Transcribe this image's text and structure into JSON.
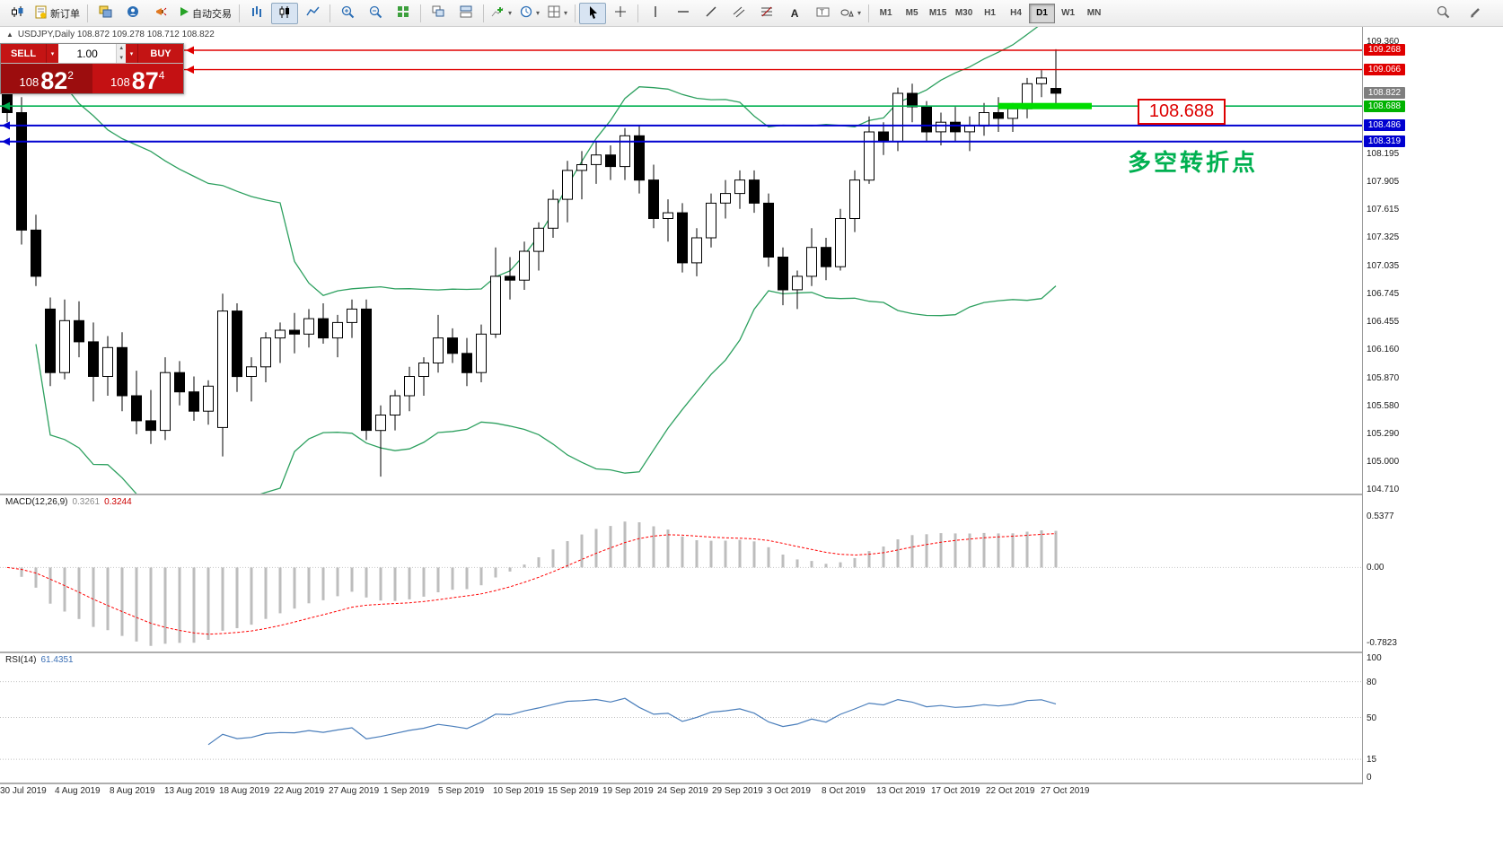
{
  "toolbar": {
    "new_order_label": "新订单",
    "auto_trading_label": "自动交易",
    "timeframes": [
      "M1",
      "M5",
      "M15",
      "M30",
      "H1",
      "H4",
      "D1",
      "W1",
      "MN"
    ],
    "active_timeframe": "D1"
  },
  "trade_panel": {
    "sell_label": "SELL",
    "buy_label": "BUY",
    "volume": "1.00",
    "sell_price": {
      "prefix": "108",
      "big": "82",
      "sup": "2"
    },
    "buy_price": {
      "prefix": "108",
      "big": "87",
      "sup": "4"
    }
  },
  "chart_header": {
    "text": "USDJPY,Daily  108.872 109.278 108.712 108.822"
  },
  "annotations": {
    "price_callout": "108.688",
    "turning_point": "多空转折点"
  },
  "chart_data": {
    "type": "candlestick",
    "symbol": "USDJPY",
    "timeframe": "Daily",
    "title_ohlc": {
      "open": "108.872",
      "high": "109.278",
      "low": "108.712",
      "close": "108.822"
    },
    "price_axis": {
      "ticks": [
        "109.360",
        "108.195",
        "107.905",
        "107.615",
        "107.325",
        "107.035",
        "106.745",
        "106.455",
        "106.160",
        "105.870",
        "105.580",
        "105.290",
        "105.000",
        "104.710"
      ]
    },
    "price_tags": [
      {
        "label": "109.268",
        "bg": "#e00000",
        "fg": "#ffffff"
      },
      {
        "label": "109.066",
        "bg": "#e00000",
        "fg": "#ffffff"
      },
      {
        "label": "108.822",
        "bg": "#7f7f7f",
        "fg": "#ffffff"
      },
      {
        "label": "108.688",
        "bg": "#00b200",
        "fg": "#ffffff"
      },
      {
        "label": "108.486",
        "bg": "#0000d0",
        "fg": "#ffffff"
      },
      {
        "label": "108.319",
        "bg": "#0000d0",
        "fg": "#ffffff"
      }
    ],
    "hlines": [
      {
        "price": 109.268,
        "color": "#e00000",
        "width": 1.4
      },
      {
        "price": 109.066,
        "color": "#e00000",
        "width": 1.4
      },
      {
        "price": 108.688,
        "color": "#00b050",
        "width": 1.6
      },
      {
        "price": 108.486,
        "color": "#0000d0",
        "width": 2
      },
      {
        "price": 108.319,
        "color": "#0000d0",
        "width": 2
      }
    ],
    "highlight_segment": {
      "price": 108.688,
      "from_bar": 69,
      "to_bar": 75.5,
      "color": "#00dd00",
      "thickness": 7
    },
    "dates": [
      "30 Jul 2019",
      "4 Aug 2019",
      "8 Aug 2019",
      "13 Aug 2019",
      "18 Aug 2019",
      "22 Aug 2019",
      "27 Aug 2019",
      "1 Sep 2019",
      "5 Sep 2019",
      "10 Sep 2019",
      "15 Sep 2019",
      "19 Sep 2019",
      "24 Sep 2019",
      "29 Sep 2019",
      "3 Oct 2019",
      "8 Oct 2019",
      "13 Oct 2019",
      "17 Oct 2019",
      "22 Oct 2019",
      "27 Oct 2019"
    ],
    "candles": [
      [
        108.95,
        109.02,
        108.52,
        108.62
      ],
      [
        108.62,
        108.78,
        107.25,
        107.4
      ],
      [
        107.4,
        107.56,
        106.82,
        106.92
      ],
      [
        106.58,
        106.7,
        105.78,
        105.92
      ],
      [
        105.92,
        106.68,
        105.85,
        106.46
      ],
      [
        106.46,
        106.66,
        106.08,
        106.24
      ],
      [
        106.24,
        106.44,
        105.62,
        105.88
      ],
      [
        105.88,
        106.3,
        105.68,
        106.18
      ],
      [
        106.18,
        106.34,
        105.52,
        105.68
      ],
      [
        105.68,
        105.94,
        105.28,
        105.42
      ],
      [
        105.42,
        105.74,
        105.18,
        105.32
      ],
      [
        105.32,
        106.08,
        105.22,
        105.92
      ],
      [
        105.92,
        106.04,
        105.58,
        105.72
      ],
      [
        105.72,
        105.88,
        105.42,
        105.52
      ],
      [
        105.52,
        105.84,
        105.38,
        105.78
      ],
      [
        105.35,
        106.74,
        105.05,
        106.56
      ],
      [
        106.56,
        106.64,
        105.72,
        105.88
      ],
      [
        105.88,
        106.08,
        105.62,
        105.98
      ],
      [
        105.98,
        106.34,
        105.82,
        106.28
      ],
      [
        106.28,
        106.44,
        106.02,
        106.36
      ],
      [
        106.36,
        106.54,
        106.12,
        106.32
      ],
      [
        106.32,
        106.58,
        106.18,
        106.48
      ],
      [
        106.48,
        106.64,
        106.22,
        106.28
      ],
      [
        106.28,
        106.52,
        106.08,
        106.44
      ],
      [
        106.44,
        106.68,
        106.28,
        106.58
      ],
      [
        106.58,
        106.68,
        105.22,
        105.32
      ],
      [
        105.32,
        105.58,
        104.84,
        105.48
      ],
      [
        105.48,
        105.74,
        105.32,
        105.68
      ],
      [
        105.68,
        105.98,
        105.52,
        105.88
      ],
      [
        105.88,
        106.08,
        105.68,
        106.02
      ],
      [
        106.02,
        106.52,
        105.92,
        106.28
      ],
      [
        106.28,
        106.38,
        106.02,
        106.12
      ],
      [
        106.12,
        106.28,
        105.78,
        105.92
      ],
      [
        105.92,
        106.42,
        105.82,
        106.32
      ],
      [
        106.32,
        107.22,
        106.28,
        106.92
      ],
      [
        106.92,
        107.12,
        106.68,
        106.88
      ],
      [
        106.88,
        107.28,
        106.78,
        107.18
      ],
      [
        107.18,
        107.48,
        106.98,
        107.42
      ],
      [
        107.42,
        107.82,
        107.32,
        107.72
      ],
      [
        107.72,
        108.12,
        107.48,
        108.02
      ],
      [
        108.02,
        108.22,
        107.72,
        108.08
      ],
      [
        108.08,
        108.32,
        107.88,
        108.18
      ],
      [
        108.18,
        108.28,
        107.92,
        108.06
      ],
      [
        108.06,
        108.46,
        107.92,
        108.38
      ],
      [
        108.38,
        108.48,
        107.78,
        107.92
      ],
      [
        107.92,
        108.08,
        107.42,
        107.52
      ],
      [
        107.52,
        107.72,
        107.28,
        107.58
      ],
      [
        107.58,
        107.68,
        106.96,
        107.06
      ],
      [
        107.06,
        107.42,
        106.92,
        107.32
      ],
      [
        107.32,
        107.78,
        107.22,
        107.68
      ],
      [
        107.68,
        107.92,
        107.52,
        107.78
      ],
      [
        107.78,
        108.02,
        107.62,
        107.92
      ],
      [
        107.92,
        108.02,
        107.58,
        107.68
      ],
      [
        107.68,
        107.78,
        107.02,
        107.12
      ],
      [
        107.12,
        107.22,
        106.62,
        106.78
      ],
      [
        106.78,
        106.98,
        106.58,
        106.92
      ],
      [
        106.92,
        107.42,
        106.82,
        107.22
      ],
      [
        107.22,
        107.32,
        106.88,
        107.02
      ],
      [
        107.02,
        107.62,
        106.98,
        107.52
      ],
      [
        107.52,
        108.02,
        107.38,
        107.92
      ],
      [
        107.92,
        108.58,
        107.88,
        108.42
      ],
      [
        108.42,
        108.52,
        108.18,
        108.32
      ],
      [
        108.32,
        108.88,
        108.22,
        108.82
      ],
      [
        108.82,
        108.92,
        108.52,
        108.68
      ],
      [
        108.68,
        108.74,
        108.32,
        108.42
      ],
      [
        108.42,
        108.62,
        108.28,
        108.52
      ],
      [
        108.52,
        108.68,
        108.32,
        108.42
      ],
      [
        108.42,
        108.58,
        108.22,
        108.48
      ],
      [
        108.48,
        108.72,
        108.38,
        108.62
      ],
      [
        108.62,
        108.78,
        108.42,
        108.56
      ],
      [
        108.56,
        108.72,
        108.42,
        108.66
      ],
      [
        108.66,
        108.98,
        108.56,
        108.92
      ],
      [
        108.92,
        109.06,
        108.78,
        108.98
      ],
      [
        108.872,
        109.278,
        108.712,
        108.822
      ]
    ],
    "indicators": {
      "bollinger": {
        "period": 20,
        "deviation": 2,
        "color": "#2da05f"
      },
      "macd": {
        "name": "MACD(12,26,9)",
        "value_main": "0.3261",
        "value_signal": "0.3244",
        "axis_labels": [
          "0.5377",
          "0.00",
          "-0.7823"
        ],
        "histogram_color": "#bdbdbd",
        "signal_color": "#ff0000"
      },
      "rsi": {
        "name": "RSI(14)",
        "value": "61.4351",
        "axis_labels": [
          "100",
          "80",
          "50",
          "15",
          "0"
        ],
        "levels": [
          80,
          50,
          15
        ],
        "line_color": "#4a7ebb"
      }
    }
  }
}
